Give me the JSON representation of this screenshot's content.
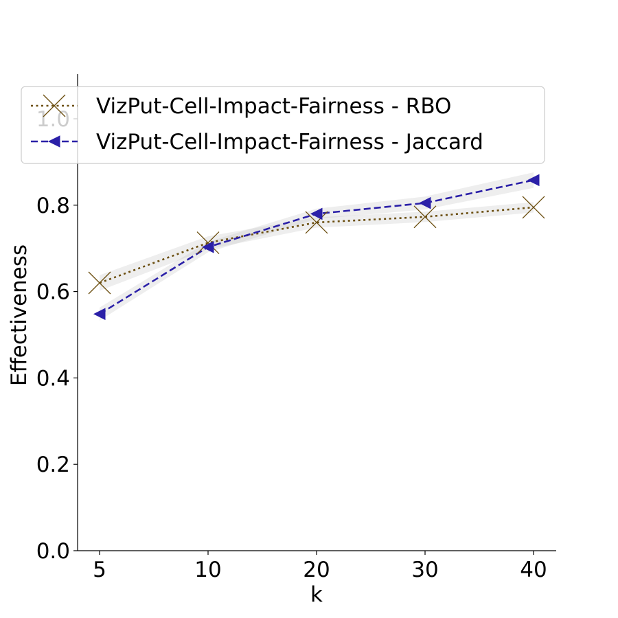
{
  "chart_data": {
    "type": "line",
    "title": "",
    "xlabel": "k",
    "ylabel": "Effectiveness",
    "categories": [
      "5",
      "10",
      "20",
      "30",
      "40"
    ],
    "ylim": [
      0.0,
      1.1
    ],
    "yticks": [
      "0.0",
      "0.2",
      "0.4",
      "0.6",
      "0.8",
      "1.0"
    ],
    "grid": false,
    "legend_position": "top-left",
    "series": [
      {
        "name": "VizPut-Cell-Impact-Fairness - RBO",
        "values": [
          0.62,
          0.713,
          0.76,
          0.773,
          0.795
        ],
        "band": [
          0.018,
          0.015,
          0.012,
          0.012,
          0.012
        ],
        "color": "#6b4e0f",
        "line_style": "dotted",
        "marker": "x"
      },
      {
        "name": "VizPut-Cell-Impact-Fairness - Jaccard",
        "values": [
          0.548,
          0.703,
          0.78,
          0.805,
          0.858
        ],
        "band": [
          0.015,
          0.012,
          0.012,
          0.015,
          0.018
        ],
        "color": "#2b20a8",
        "line_style": "dashed",
        "marker": "triangle-left"
      }
    ],
    "band_color": "#c8c8c8"
  }
}
